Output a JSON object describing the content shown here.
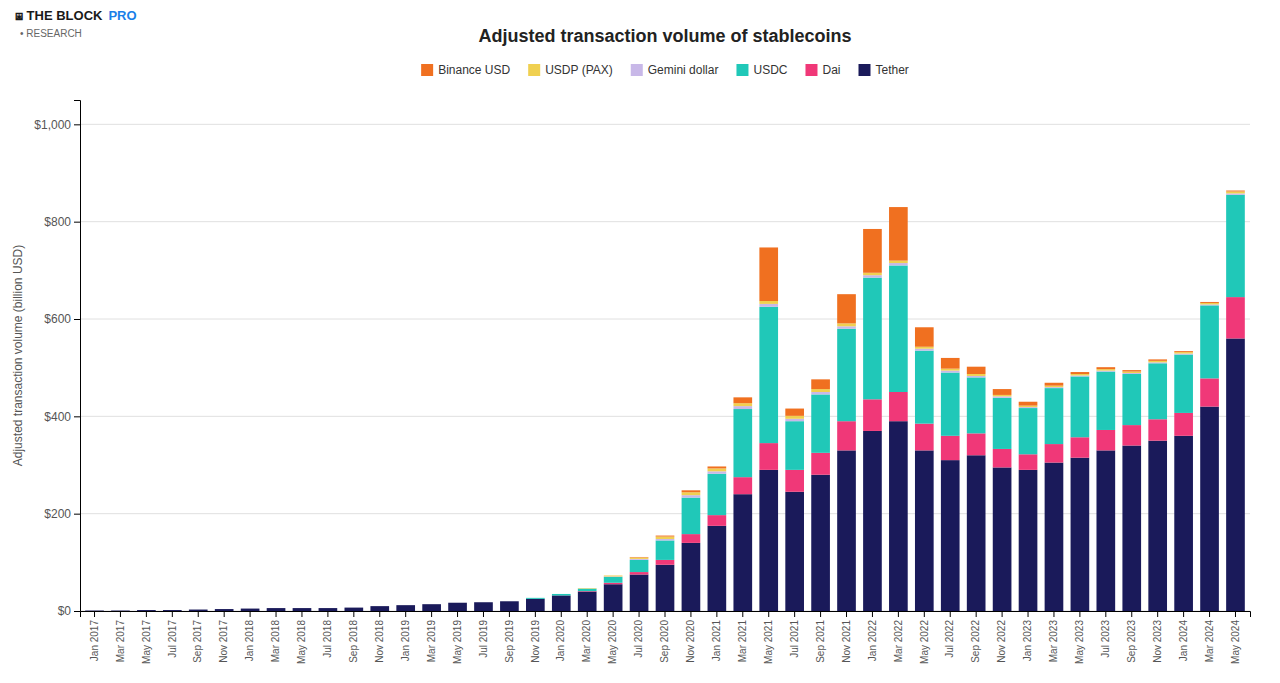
{
  "chart_data": {
    "type": "bar",
    "stacked": true,
    "grid": true,
    "title": "Adjusted transaction volume of stablecoins",
    "y_label": "Adjusted transaction volume (billion USD)",
    "annotations": [
      "⧆ THE BLOCK",
      "PRO",
      "• RESEARCH"
    ],
    "categories": [
      "Jan 2017",
      "Mar 2017",
      "May 2017",
      "Jul 2017",
      "Sep 2017",
      "Nov 2017",
      "Jan 2018",
      "Mar 2018",
      "May 2018",
      "Jul 2018",
      "Sep 2018",
      "Nov 2018",
      "Jan 2019",
      "Mar 2019",
      "May 2019",
      "Jul 2019",
      "Sep 2019",
      "Nov 2019",
      "Jan 2020",
      "Mar 2020",
      "May 2020",
      "Jul 2020",
      "Sep 2020",
      "Nov 2020",
      "Jan 2021",
      "Mar 2021",
      "May 2021",
      "Jul 2021",
      "Sep 2021",
      "Nov 2021",
      "Jan 2022",
      "Mar 2022",
      "May 2022",
      "Jul 2022",
      "Sep 2022",
      "Nov 2022",
      "Jan 2023",
      "Mar 2023",
      "May 2023",
      "Jul 2023",
      "Sep 2023",
      "Nov 2023",
      "Jan 2024",
      "Mar 2024",
      "May 2024"
    ],
    "series": [
      {
        "name": "Tether",
        "color": "#1a1a5a",
        "values": [
          1,
          1,
          2,
          2,
          3,
          4,
          5,
          6,
          6,
          6,
          7,
          10,
          12,
          14,
          17,
          18,
          20,
          25,
          32,
          40,
          55,
          75,
          95,
          140,
          175,
          240,
          290,
          245,
          280,
          330,
          370,
          390,
          330,
          310,
          320,
          295,
          290,
          305,
          315,
          330,
          340,
          350,
          360,
          420,
          560
        ]
      },
      {
        "name": "Dai",
        "color": "#f03878",
        "values": [
          0,
          0,
          0,
          0,
          0,
          0,
          0,
          0,
          0,
          0,
          0,
          0,
          0,
          0,
          0,
          0,
          0,
          0,
          0,
          1,
          3,
          5,
          10,
          18,
          22,
          35,
          55,
          45,
          45,
          60,
          65,
          60,
          55,
          50,
          45,
          38,
          32,
          38,
          42,
          42,
          42,
          44,
          47,
          58,
          85
        ]
      },
      {
        "name": "USDC",
        "color": "#20c8b8",
        "values": [
          0,
          0,
          0,
          0,
          0,
          0,
          0,
          0,
          0,
          0,
          0,
          0,
          0,
          0,
          0,
          0,
          0,
          2,
          3,
          5,
          12,
          25,
          40,
          75,
          85,
          140,
          280,
          100,
          120,
          190,
          250,
          260,
          150,
          130,
          115,
          105,
          95,
          115,
          125,
          120,
          105,
          115,
          120,
          150,
          210
        ]
      },
      {
        "name": "Gemini dollar",
        "color": "#c8b8e8",
        "values": [
          0,
          0,
          0,
          0,
          0,
          0,
          0,
          0,
          0,
          0,
          0,
          0,
          0,
          0,
          0,
          0,
          0,
          0,
          0,
          0,
          1,
          2,
          3,
          5,
          5,
          6,
          6,
          5,
          5,
          5,
          5,
          5,
          4,
          4,
          3,
          3,
          2,
          2,
          2,
          2,
          2,
          2,
          2,
          2,
          3
        ]
      },
      {
        "name": "USDP (PAX)",
        "color": "#f0d050",
        "values": [
          0,
          0,
          0,
          0,
          0,
          0,
          0,
          0,
          0,
          0,
          0,
          0,
          0,
          0,
          0,
          0,
          0,
          0,
          0,
          1,
          2,
          3,
          5,
          6,
          6,
          6,
          6,
          6,
          6,
          6,
          5,
          5,
          4,
          4,
          4,
          3,
          3,
          3,
          3,
          3,
          3,
          3,
          3,
          3,
          4
        ]
      },
      {
        "name": "Binance USD",
        "color": "#f07020",
        "values": [
          0,
          0,
          0,
          0,
          0,
          0,
          0,
          0,
          0,
          0,
          0,
          0,
          0,
          0,
          0,
          0,
          0,
          0,
          0,
          0,
          0,
          1,
          2,
          4,
          4,
          12,
          110,
          15,
          20,
          60,
          90,
          110,
          40,
          22,
          15,
          12,
          8,
          6,
          4,
          4,
          3,
          3,
          2,
          2,
          2
        ]
      }
    ],
    "ylim": [
      0,
      1050
    ],
    "yticks": [
      {
        "value": 0,
        "label": "$0"
      },
      {
        "value": 200,
        "label": "$200"
      },
      {
        "value": 400,
        "label": "$400"
      },
      {
        "value": 600,
        "label": "$600"
      },
      {
        "value": 800,
        "label": "$800"
      },
      {
        "value": 1000,
        "label": "$1,000"
      }
    ]
  }
}
